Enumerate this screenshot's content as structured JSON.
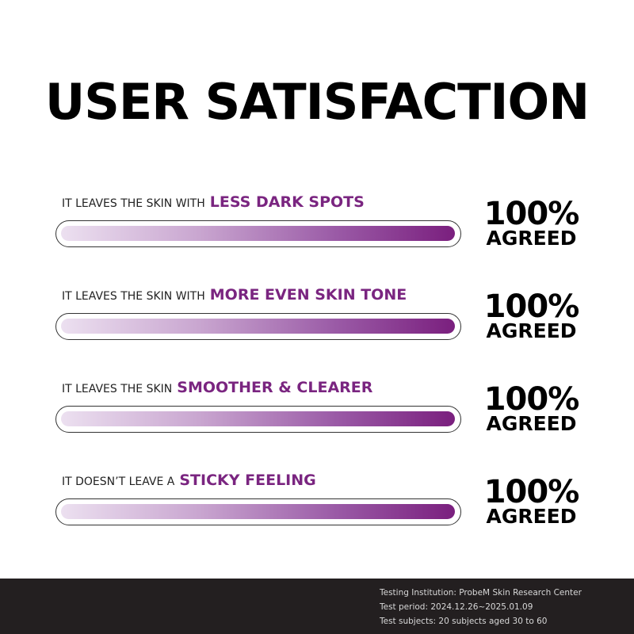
{
  "title": "USER SATISFACTION",
  "items": [
    {
      "prefix": "IT LEAVES THE SKIN WITH",
      "highlight": "LESS DARK SPOTS",
      "percent": "100%",
      "value": 100,
      "status": "AGREED"
    },
    {
      "prefix": "IT LEAVES THE SKIN WITH",
      "highlight": "MORE EVEN SKIN TONE",
      "percent": "100%",
      "value": 100,
      "status": "AGREED"
    },
    {
      "prefix": "IT LEAVES THE SKIN",
      "highlight": "SMOOTHER & CLEARER",
      "percent": "100%",
      "value": 100,
      "status": "AGREED"
    },
    {
      "prefix": "IT DOESN’T LEAVE A",
      "highlight": "STICKY FEELING",
      "percent": "100%",
      "value": 100,
      "status": "AGREED"
    }
  ],
  "footer": {
    "institution": "Testing Institution: ProbeM Skin Research Center",
    "period": "Test period: 2024.12.26~2025.01.09",
    "subjects": "Test subjects: 20 subjects aged 30 to 60"
  },
  "colors": {
    "accent": "#7a2580",
    "footer_bg": "#231f20"
  }
}
